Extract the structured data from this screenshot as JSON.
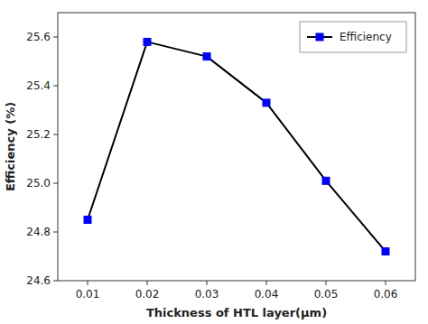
{
  "chart_data": {
    "type": "line",
    "xlabel": "Thickness of HTL layer(μm)",
    "ylabel": "Efficiency (%)",
    "x": [
      0.01,
      0.02,
      0.03,
      0.04,
      0.05,
      0.06
    ],
    "series": [
      {
        "name": "Efficiency",
        "color": "black",
        "marker": "square",
        "colors": [
          "blue",
          "blue",
          "blue",
          "blue",
          "blue",
          "blue"
        ],
        "values": [
          24.85,
          25.58,
          25.52,
          25.33,
          25.01,
          24.72
        ]
      }
    ],
    "xlim": [
      0.005,
      0.065
    ],
    "ylim": [
      24.6,
      25.7
    ],
    "xticks": [
      0.01,
      0.02,
      0.03,
      0.04,
      0.05,
      0.06
    ],
    "yticks": [
      24.6,
      24.8,
      {
        "value": 25.0,
        "label": "25.0"
      },
      25.2,
      25.4,
      25.6
    ],
    "legend": "upper right"
  }
}
